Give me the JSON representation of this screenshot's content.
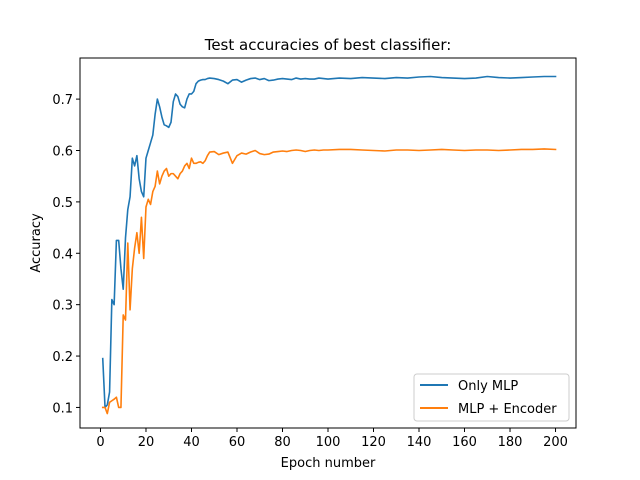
{
  "colors": {
    "series_1": "#1f77b4",
    "series_2": "#ff7f0e",
    "axes": "#000000",
    "legend_border": "#cccccc",
    "background": "#ffffff"
  },
  "chart_data": {
    "type": "line",
    "title": "Test accuracies of best classifier:",
    "xlabel": "Epoch number",
    "ylabel": "Accuracy",
    "xlim": [
      -9,
      209
    ],
    "ylim": [
      0.06,
      0.78
    ],
    "xticks": [
      0,
      20,
      40,
      60,
      80,
      100,
      120,
      140,
      160,
      180,
      200
    ],
    "yticks": [
      0.1,
      0.2,
      0.3,
      0.4,
      0.5,
      0.6,
      0.7
    ],
    "ytick_labels": [
      "0.1",
      "0.2",
      "0.3",
      "0.4",
      "0.5",
      "0.6",
      "0.7"
    ],
    "grid": false,
    "legend": {
      "position": "lower-right",
      "entries": [
        "Only MLP",
        "MLP + Encoder"
      ]
    },
    "series": [
      {
        "name": "Only MLP",
        "color": "#1f77b4",
        "x": [
          1,
          2,
          3,
          4,
          5,
          6,
          7,
          8,
          9,
          10,
          11,
          12,
          13,
          14,
          15,
          16,
          17,
          18,
          19,
          20,
          21,
          22,
          23,
          24,
          25,
          26,
          27,
          28,
          29,
          30,
          31,
          32,
          33,
          34,
          35,
          36,
          37,
          38,
          39,
          40,
          41,
          42,
          43,
          44,
          45,
          46,
          47,
          48,
          50,
          52,
          54,
          56,
          58,
          60,
          62,
          64,
          66,
          68,
          70,
          72,
          74,
          76,
          78,
          80,
          82,
          84,
          86,
          88,
          90,
          92,
          94,
          96,
          98,
          100,
          105,
          110,
          115,
          120,
          125,
          130,
          135,
          140,
          145,
          150,
          155,
          160,
          165,
          170,
          175,
          180,
          185,
          190,
          195,
          200
        ],
        "y": [
          0.195,
          0.1,
          0.105,
          0.13,
          0.31,
          0.3,
          0.425,
          0.425,
          0.37,
          0.33,
          0.43,
          0.485,
          0.51,
          0.585,
          0.57,
          0.59,
          0.545,
          0.52,
          0.51,
          0.585,
          0.6,
          0.615,
          0.63,
          0.67,
          0.7,
          0.685,
          0.665,
          0.65,
          0.648,
          0.645,
          0.655,
          0.695,
          0.71,
          0.705,
          0.69,
          0.685,
          0.683,
          0.7,
          0.71,
          0.71,
          0.715,
          0.73,
          0.735,
          0.737,
          0.738,
          0.738,
          0.74,
          0.741,
          0.74,
          0.738,
          0.735,
          0.73,
          0.737,
          0.738,
          0.733,
          0.737,
          0.74,
          0.741,
          0.738,
          0.74,
          0.736,
          0.737,
          0.739,
          0.74,
          0.739,
          0.738,
          0.741,
          0.739,
          0.74,
          0.739,
          0.739,
          0.741,
          0.74,
          0.739,
          0.741,
          0.74,
          0.742,
          0.741,
          0.74,
          0.742,
          0.741,
          0.743,
          0.744,
          0.742,
          0.741,
          0.74,
          0.741,
          0.744,
          0.742,
          0.741,
          0.742,
          0.743,
          0.744,
          0.744
        ]
      },
      {
        "name": "MLP + Encoder",
        "color": "#ff7f0e",
        "x": [
          1,
          2,
          3,
          4,
          5,
          6,
          7,
          8,
          9,
          10,
          11,
          12,
          13,
          14,
          15,
          16,
          17,
          18,
          19,
          20,
          21,
          22,
          23,
          24,
          25,
          26,
          27,
          28,
          29,
          30,
          31,
          32,
          33,
          34,
          35,
          36,
          37,
          38,
          39,
          40,
          41,
          42,
          43,
          44,
          45,
          46,
          47,
          48,
          50,
          52,
          54,
          56,
          58,
          60,
          62,
          64,
          66,
          68,
          70,
          72,
          74,
          76,
          78,
          80,
          82,
          84,
          86,
          88,
          90,
          92,
          94,
          96,
          98,
          100,
          105,
          110,
          115,
          120,
          125,
          130,
          135,
          140,
          145,
          150,
          155,
          160,
          165,
          170,
          175,
          180,
          185,
          190,
          195,
          200
        ],
        "y": [
          0.1,
          0.1,
          0.088,
          0.11,
          0.113,
          0.116,
          0.12,
          0.1,
          0.1,
          0.28,
          0.27,
          0.42,
          0.29,
          0.37,
          0.41,
          0.44,
          0.4,
          0.47,
          0.39,
          0.49,
          0.505,
          0.495,
          0.52,
          0.53,
          0.56,
          0.535,
          0.55,
          0.56,
          0.565,
          0.55,
          0.555,
          0.555,
          0.55,
          0.545,
          0.555,
          0.56,
          0.57,
          0.575,
          0.565,
          0.585,
          0.575,
          0.575,
          0.577,
          0.578,
          0.575,
          0.58,
          0.59,
          0.597,
          0.598,
          0.592,
          0.595,
          0.597,
          0.575,
          0.59,
          0.595,
          0.593,
          0.597,
          0.6,
          0.594,
          0.592,
          0.593,
          0.597,
          0.598,
          0.599,
          0.598,
          0.6,
          0.601,
          0.6,
          0.598,
          0.6,
          0.601,
          0.6,
          0.601,
          0.601,
          0.602,
          0.602,
          0.601,
          0.6,
          0.599,
          0.601,
          0.601,
          0.6,
          0.601,
          0.602,
          0.601,
          0.6,
          0.601,
          0.601,
          0.6,
          0.601,
          0.602,
          0.602,
          0.603,
          0.602
        ]
      }
    ]
  }
}
